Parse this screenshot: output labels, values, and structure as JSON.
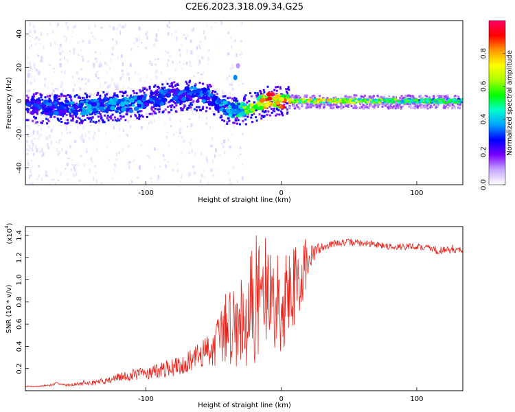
{
  "page_title": "C2E6.2023.318.09.34.G25",
  "chart_data": [
    {
      "type": "heatmap",
      "xlabel": "Height of straight line (km)",
      "ylabel": "Frequency (Hz)",
      "xlim": [
        -189,
        134
      ],
      "ylim": [
        -50,
        48
      ],
      "xticks": [
        -100,
        0,
        100
      ],
      "yticks": [
        -40,
        -20,
        0,
        20,
        40
      ],
      "ridge": [
        {
          "x": -188,
          "y": -3,
          "amp": 0.3
        },
        {
          "x": -170,
          "y": -4,
          "amp": 0.35
        },
        {
          "x": -150,
          "y": -4,
          "amp": 0.4
        },
        {
          "x": -130,
          "y": -3,
          "amp": 0.4
        },
        {
          "x": -110,
          "y": -2,
          "amp": 0.4
        },
        {
          "x": -90,
          "y": 2,
          "amp": 0.35
        },
        {
          "x": -70,
          "y": 4,
          "amp": 0.35
        },
        {
          "x": -55,
          "y": 3,
          "amp": 0.35
        },
        {
          "x": -45,
          "y": -3,
          "amp": 0.4
        },
        {
          "x": -35,
          "y": -6,
          "amp": 0.45
        },
        {
          "x": -25,
          "y": -4,
          "amp": 0.65
        },
        {
          "x": -15,
          "y": -1,
          "amp": 0.8
        },
        {
          "x": -8,
          "y": 1,
          "amp": 0.95
        },
        {
          "x": 0,
          "y": 0,
          "amp": 0.95
        },
        {
          "x": 10,
          "y": 0,
          "amp": 0.7
        },
        {
          "x": 30,
          "y": 0,
          "amp": 0.8
        },
        {
          "x": 60,
          "y": 0,
          "amp": 0.7
        },
        {
          "x": 90,
          "y": 0,
          "amp": 0.6
        },
        {
          "x": 120,
          "y": 0,
          "amp": 0.55
        },
        {
          "x": 134,
          "y": 0,
          "amp": 0.5
        }
      ],
      "isolated_features": [
        {
          "x": -34,
          "y": 14,
          "amp": 0.35
        },
        {
          "x": -32,
          "y": 21,
          "amp": 0.1
        }
      ],
      "colorbar": {
        "label": "Normalized spectral amplitude",
        "range": [
          0,
          1
        ],
        "ticks": [
          "0.0",
          "0.2",
          "0.4",
          "0.6",
          "0.8"
        ],
        "colormap": [
          "#ffffff",
          "#c8a8ff",
          "#7a00ff",
          "#0000ff",
          "#00a0ff",
          "#00ffcc",
          "#00ff00",
          "#aaff00",
          "#ffff00",
          "#ff9900",
          "#ff0000",
          "#ff0066"
        ]
      }
    },
    {
      "type": "line",
      "xlabel": "Height of straight line (km)",
      "ylabel": "SNR (10 * v/v)",
      "y_multiplier": "(x10",
      "y_multiplier_exp": "4",
      "y_multiplier_close": ")",
      "xlim": [
        -189,
        134
      ],
      "ylim": [
        0,
        1.48
      ],
      "xticks": [
        -100,
        0,
        100
      ],
      "yticks": [
        "0.2",
        "0.4",
        "0.6",
        "0.8",
        "1.0",
        "1.2",
        "1.4"
      ],
      "line_color": "#e8231b",
      "series": [
        {
          "x": [
            -189,
            -180,
            -170,
            -165,
            -160,
            -150,
            -140,
            -130,
            -120,
            -110,
            -100,
            -90,
            -80,
            -70,
            -60,
            -50,
            -45,
            -40,
            -35,
            -30,
            -25,
            -20,
            -18,
            -15,
            -10,
            -5,
            0,
            5,
            10,
            15,
            20,
            25,
            30,
            40,
            50,
            60,
            70,
            80,
            90,
            100,
            105,
            110,
            115,
            120,
            125,
            134
          ],
          "values": [
            0.04,
            0.04,
            0.05,
            0.07,
            0.05,
            0.06,
            0.07,
            0.09,
            0.12,
            0.14,
            0.16,
            0.18,
            0.21,
            0.25,
            0.32,
            0.4,
            0.48,
            0.55,
            0.62,
            0.65,
            0.72,
            0.78,
            0.85,
            0.9,
            0.85,
            0.8,
            0.75,
            0.88,
            0.95,
            1.05,
            1.15,
            1.25,
            1.3,
            1.33,
            1.34,
            1.33,
            1.32,
            1.3,
            1.3,
            1.3,
            1.29,
            1.29,
            1.26,
            1.27,
            1.27,
            1.27
          ],
          "noise": [
            0.005,
            0.005,
            0.01,
            0.01,
            0.01,
            0.015,
            0.02,
            0.03,
            0.04,
            0.05,
            0.06,
            0.07,
            0.08,
            0.09,
            0.12,
            0.18,
            0.25,
            0.3,
            0.4,
            0.45,
            0.5,
            0.55,
            0.6,
            0.55,
            0.5,
            0.45,
            0.45,
            0.4,
            0.4,
            0.3,
            0.15,
            0.08,
            0.04,
            0.03,
            0.03,
            0.03,
            0.03,
            0.03,
            0.03,
            0.03,
            0.03,
            0.03,
            0.04,
            0.03,
            0.03,
            0.03
          ]
        }
      ]
    }
  ]
}
